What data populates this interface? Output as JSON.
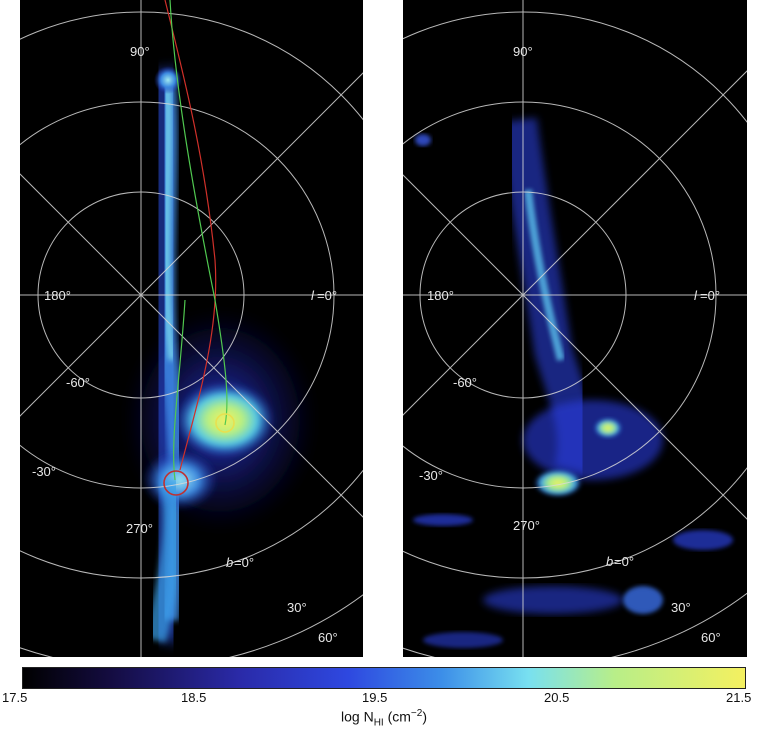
{
  "left_panel": {
    "labels": {
      "l_90": "90°",
      "l_180": "180°",
      "l_0": "=0°",
      "l_0_letter": "l",
      "l_270": "270°",
      "b_m60": "-60°",
      "b_m30": "-30°",
      "b_0": "=0°",
      "b_0_letter": "b",
      "b_30": "30°",
      "b_60": "60°"
    }
  },
  "right_panel": {
    "labels": {
      "l_90": "90°",
      "l_180": "180°",
      "l_0": "=0°",
      "l_0_letter": "l",
      "l_270": "270°",
      "b_m60": "-60°",
      "b_m30": "-30°",
      "b_0": "=0°",
      "b_0_letter": "b",
      "b_30": "30°",
      "b_60": "60°"
    }
  },
  "colorbar": {
    "ticks": [
      "17.5",
      "18.5",
      "19.5",
      "20.5",
      "21.5"
    ],
    "title_prefix": "log N",
    "title_sub": "HI",
    "title_suffix": " (cm",
    "title_sup": "−2",
    "title_close": ")"
  },
  "colors": {
    "background": "#000000",
    "grid": "#d9d9d9",
    "track_red": "#d0302a",
    "track_green": "#50c850",
    "circle_red": "#c03030",
    "circle_yellow": "#e8e050"
  }
}
